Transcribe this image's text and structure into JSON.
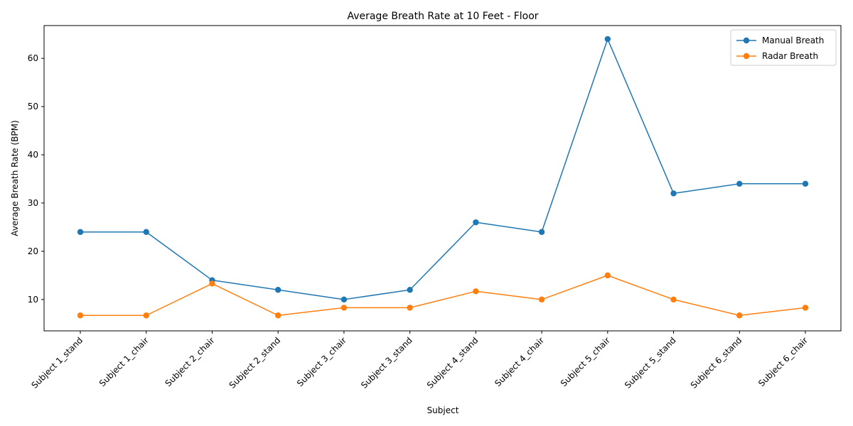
{
  "chart_data": {
    "type": "line",
    "title": "Average Breath Rate at 10 Feet - Floor",
    "xlabel": "Subject",
    "ylabel": "Average Breath Rate (BPM)",
    "categories": [
      "Subject 1_stand",
      "Subject 1_chair",
      "Subject 2_chair",
      "Subject 2_stand",
      "Subject 3_chair",
      "Subject 3_stand",
      "Subject 4_stand",
      "Subject 4_chair",
      "Subject 5_chair",
      "Subject 5_stand",
      "Subject 6_stand",
      "Subject 6_chair"
    ],
    "series": [
      {
        "name": "Manual Breath",
        "color": "#1f77b4",
        "values": [
          24,
          24,
          14,
          12,
          10,
          12,
          26,
          24,
          64,
          32,
          34,
          34
        ]
      },
      {
        "name": "Radar Breath",
        "color": "#ff7f0e",
        "values": [
          6.7,
          6.7,
          13.3,
          6.7,
          8.3,
          8.3,
          11.7,
          10,
          15,
          10,
          6.7,
          8.3
        ]
      }
    ],
    "ylim": [
      3.5,
      66.8
    ],
    "yticks": [
      10,
      20,
      30,
      40,
      50,
      60
    ],
    "grid": false,
    "legend_position": "top-right",
    "marker": "circle"
  }
}
